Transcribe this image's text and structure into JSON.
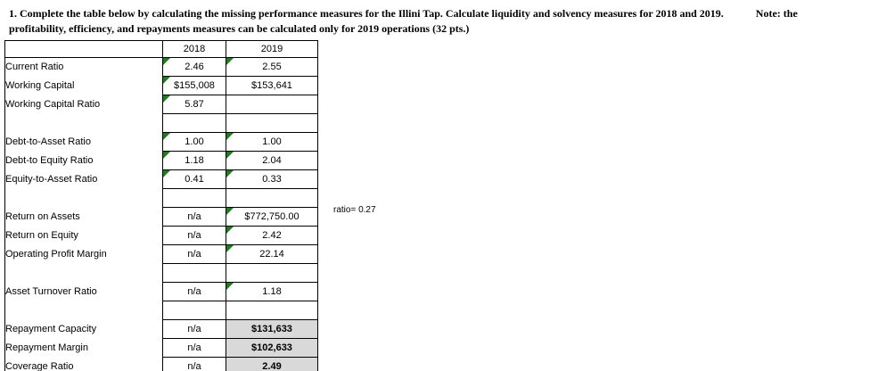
{
  "title": {
    "line1_main": "1. Complete the table below by calculating the missing performance measures for the Illini Tap.  Calculate liquidity and solvency measures for 2018 and 2019.",
    "line1_note": "Note: the",
    "line2": "profitability, efficiency, and repayments measures can be calculated only for 2019 operations (32 pts.)"
  },
  "annotation": "ratio= 0.27",
  "colors": {
    "border": "#000000",
    "highlight_fill": "#d9d9d9",
    "error_marker_green": "#1e7e1e"
  },
  "table": {
    "columns": [
      "",
      "2018",
      "2019"
    ],
    "rows": [
      {
        "label": "Current Ratio",
        "y2018": "2.46",
        "y2019": "2.55",
        "marker2018": true,
        "marker2019": true,
        "highlight2019": false,
        "spacer": false
      },
      {
        "label": "Working Capital",
        "y2018": "$155,008",
        "y2019": "$153,641",
        "marker2018": true,
        "marker2019": false,
        "highlight2019": false,
        "spacer": false
      },
      {
        "label": "Working Capital Ratio",
        "y2018": "5.87",
        "y2019": "",
        "marker2018": true,
        "marker2019": false,
        "highlight2019": false,
        "spacer": false
      },
      {
        "label": "",
        "y2018": "",
        "y2019": "",
        "marker2018": false,
        "marker2019": false,
        "highlight2019": false,
        "spacer": true
      },
      {
        "label": "Debt-to-Asset Ratio",
        "y2018": "1.00",
        "y2019": "1.00",
        "marker2018": true,
        "marker2019": true,
        "highlight2019": false,
        "spacer": false
      },
      {
        "label": "Debt-to Equity Ratio",
        "y2018": "1.18",
        "y2019": "2.04",
        "marker2018": true,
        "marker2019": true,
        "highlight2019": false,
        "spacer": false
      },
      {
        "label": "Equity-to-Asset Ratio",
        "y2018": "0.41",
        "y2019": "0.33",
        "marker2018": true,
        "marker2019": true,
        "highlight2019": false,
        "spacer": false
      },
      {
        "label": "",
        "y2018": "",
        "y2019": "",
        "marker2018": false,
        "marker2019": false,
        "highlight2019": false,
        "spacer": true
      },
      {
        "label": "Return on Assets",
        "y2018": "n/a",
        "y2019": "$772,750.00",
        "marker2018": false,
        "marker2019": true,
        "highlight2019": false,
        "spacer": false
      },
      {
        "label": "Return on Equity",
        "y2018": "n/a",
        "y2019": "2.42",
        "marker2018": false,
        "marker2019": true,
        "highlight2019": false,
        "spacer": false
      },
      {
        "label": "Operating Profit Margin",
        "y2018": "n/a",
        "y2019": "22.14",
        "marker2018": false,
        "marker2019": true,
        "highlight2019": false,
        "spacer": false
      },
      {
        "label": "",
        "y2018": "",
        "y2019": "",
        "marker2018": false,
        "marker2019": false,
        "highlight2019": false,
        "spacer": true
      },
      {
        "label": "Asset Turnover Ratio",
        "y2018": "n/a",
        "y2019": "1.18",
        "marker2018": false,
        "marker2019": true,
        "highlight2019": false,
        "spacer": false
      },
      {
        "label": "",
        "y2018": "",
        "y2019": "",
        "marker2018": false,
        "marker2019": false,
        "highlight2019": false,
        "spacer": true
      },
      {
        "label": "Repayment Capacity",
        "y2018": "n/a",
        "y2019": "$131,633",
        "marker2018": false,
        "marker2019": false,
        "highlight2019": true,
        "spacer": false
      },
      {
        "label": "Repayment Margin",
        "y2018": "n/a",
        "y2019": "$102,633",
        "marker2018": false,
        "marker2019": false,
        "highlight2019": true,
        "spacer": false
      },
      {
        "label": "Coverage Ratio",
        "y2018": "n/a",
        "y2019": "2.49",
        "marker2018": false,
        "marker2019": false,
        "highlight2019": true,
        "spacer": false
      }
    ]
  }
}
